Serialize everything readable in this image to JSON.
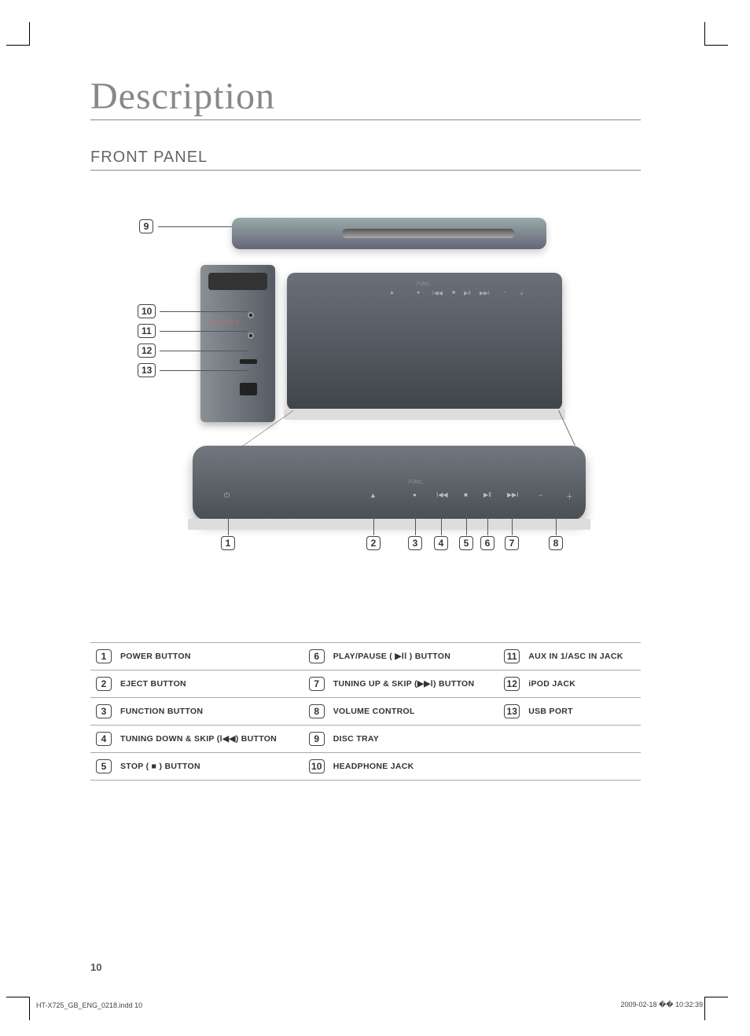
{
  "page": {
    "title": "Description",
    "section": "FRONT PANEL",
    "page_number": "10",
    "footer_left": "HT-X725_GB_ENG_0218.indd   10",
    "footer_right": "2009-02-18   �� 10:32:39"
  },
  "callouts_left": [
    "9",
    "10",
    "11",
    "12",
    "13"
  ],
  "callouts_bottom": [
    "1",
    "2",
    "3",
    "4",
    "5",
    "6",
    "7",
    "8"
  ],
  "side_labels": {
    "aux": "AUX IN1\\ASC IN"
  },
  "front_small_labels": {
    "func": "FUNC."
  },
  "table": {
    "columns": 3,
    "rows": [
      [
        {
          "n": "1",
          "t": "POWER BUTTON"
        },
        {
          "n": "6",
          "t": "PLAY/PAUSE ( ▶ⅠⅠ ) BUTTON"
        },
        {
          "n": "11",
          "t": "AUX IN 1/ASC IN JACK"
        }
      ],
      [
        {
          "n": "2",
          "t": "EJECT BUTTON"
        },
        {
          "n": "7",
          "t": "TUNING UP & SKIP (▶▶Ⅰ) BUTTON"
        },
        {
          "n": "12",
          "t": "iPOD JACK"
        }
      ],
      [
        {
          "n": "3",
          "t": "FUNCTION BUTTON"
        },
        {
          "n": "8",
          "t": "VOLUME CONTROL"
        },
        {
          "n": "13",
          "t": "USB PORT"
        }
      ],
      [
        {
          "n": "4",
          "t": "TUNING DOWN & SKIP (Ⅰ◀◀) BUTTON"
        },
        {
          "n": "9",
          "t": "DISC TRAY"
        },
        {
          "n": "",
          "t": ""
        }
      ],
      [
        {
          "n": "5",
          "t": "STOP ( ■ ) BUTTON"
        },
        {
          "n": "10",
          "t": "HEADPHONE JACK"
        },
        {
          "n": "",
          "t": ""
        }
      ]
    ]
  }
}
